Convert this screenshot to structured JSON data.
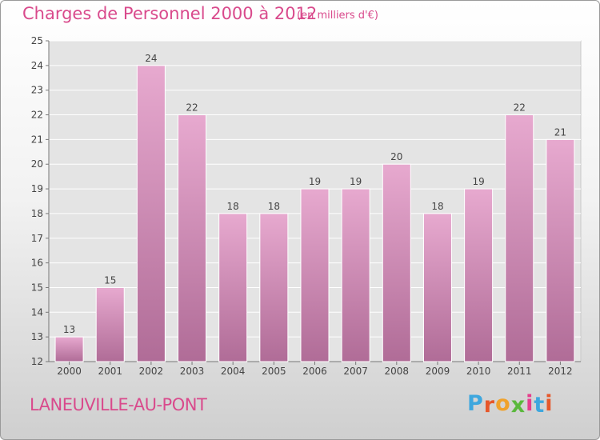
{
  "title": "Charges de Personnel 2000 à 2012",
  "subtitle": "(en milliers d'€)",
  "commune": "LANEUVILLE-AU-PONT",
  "logo": {
    "letters": [
      "P",
      "r",
      "o",
      "x",
      "i",
      "t",
      "i"
    ],
    "colors": [
      "#3ea7de",
      "#e6572a",
      "#f0a22b",
      "#5ab83c",
      "#e63d8c",
      "#3ea7de",
      "#e6572a"
    ]
  },
  "colors": {
    "bar": "#d88ab8",
    "bar_light": "#e7a9cf",
    "bar_dark": "#b06c97",
    "text": "#d94a8c"
  },
  "chart_data": {
    "type": "bar",
    "title": "Charges de Personnel 2000 à 2012",
    "subtitle": "(en milliers d'€)",
    "categories": [
      "2000",
      "2001",
      "2002",
      "2003",
      "2004",
      "2005",
      "2006",
      "2007",
      "2008",
      "2009",
      "2010",
      "2011",
      "2012"
    ],
    "values": [
      13,
      15,
      24,
      22,
      18,
      18,
      19,
      19,
      20,
      18,
      19,
      22,
      21
    ],
    "ylim": [
      12,
      25
    ],
    "yticks": [
      12,
      13,
      14,
      15,
      16,
      17,
      18,
      19,
      20,
      21,
      22,
      23,
      24,
      25
    ],
    "grid": true,
    "legend": "none"
  }
}
